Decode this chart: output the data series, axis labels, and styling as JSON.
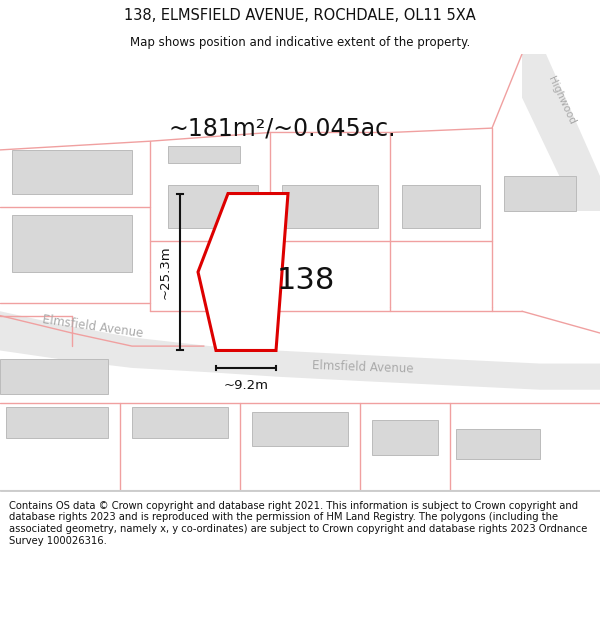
{
  "title": "138, ELMSFIELD AVENUE, ROCHDALE, OL11 5XA",
  "subtitle": "Map shows position and indicative extent of the property.",
  "footer": "Contains OS data © Crown copyright and database right 2021. This information is subject to Crown copyright and database rights 2023 and is reproduced with the permission of HM Land Registry. The polygons (including the associated geometry, namely x, y co-ordinates) are subject to Crown copyright and database rights 2023 Ordnance Survey 100026316.",
  "area_label": "~181m²/~0.045ac.",
  "width_label": "~9.2m",
  "height_label": "~25.3m",
  "plot_number": "138",
  "bg_color": "#ffffff",
  "map_bg": "#ffffff",
  "road_fill": "#e8e8e8",
  "property_fill": "#ffffff",
  "property_edge": "#dd0000",
  "building_fill": "#d8d8d8",
  "building_edge": "#c8c8c8",
  "pink_line_color": "#f0a0a0",
  "dark_pink_color": "#e08080",
  "title_fontsize": 10.5,
  "subtitle_fontsize": 8.5,
  "footer_fontsize": 7.2,
  "area_fontsize": 17,
  "plot_num_fontsize": 22,
  "dim_fontsize": 9.5,
  "road_label_fontsize": 8.5,
  "highwood_fontsize": 7.5
}
